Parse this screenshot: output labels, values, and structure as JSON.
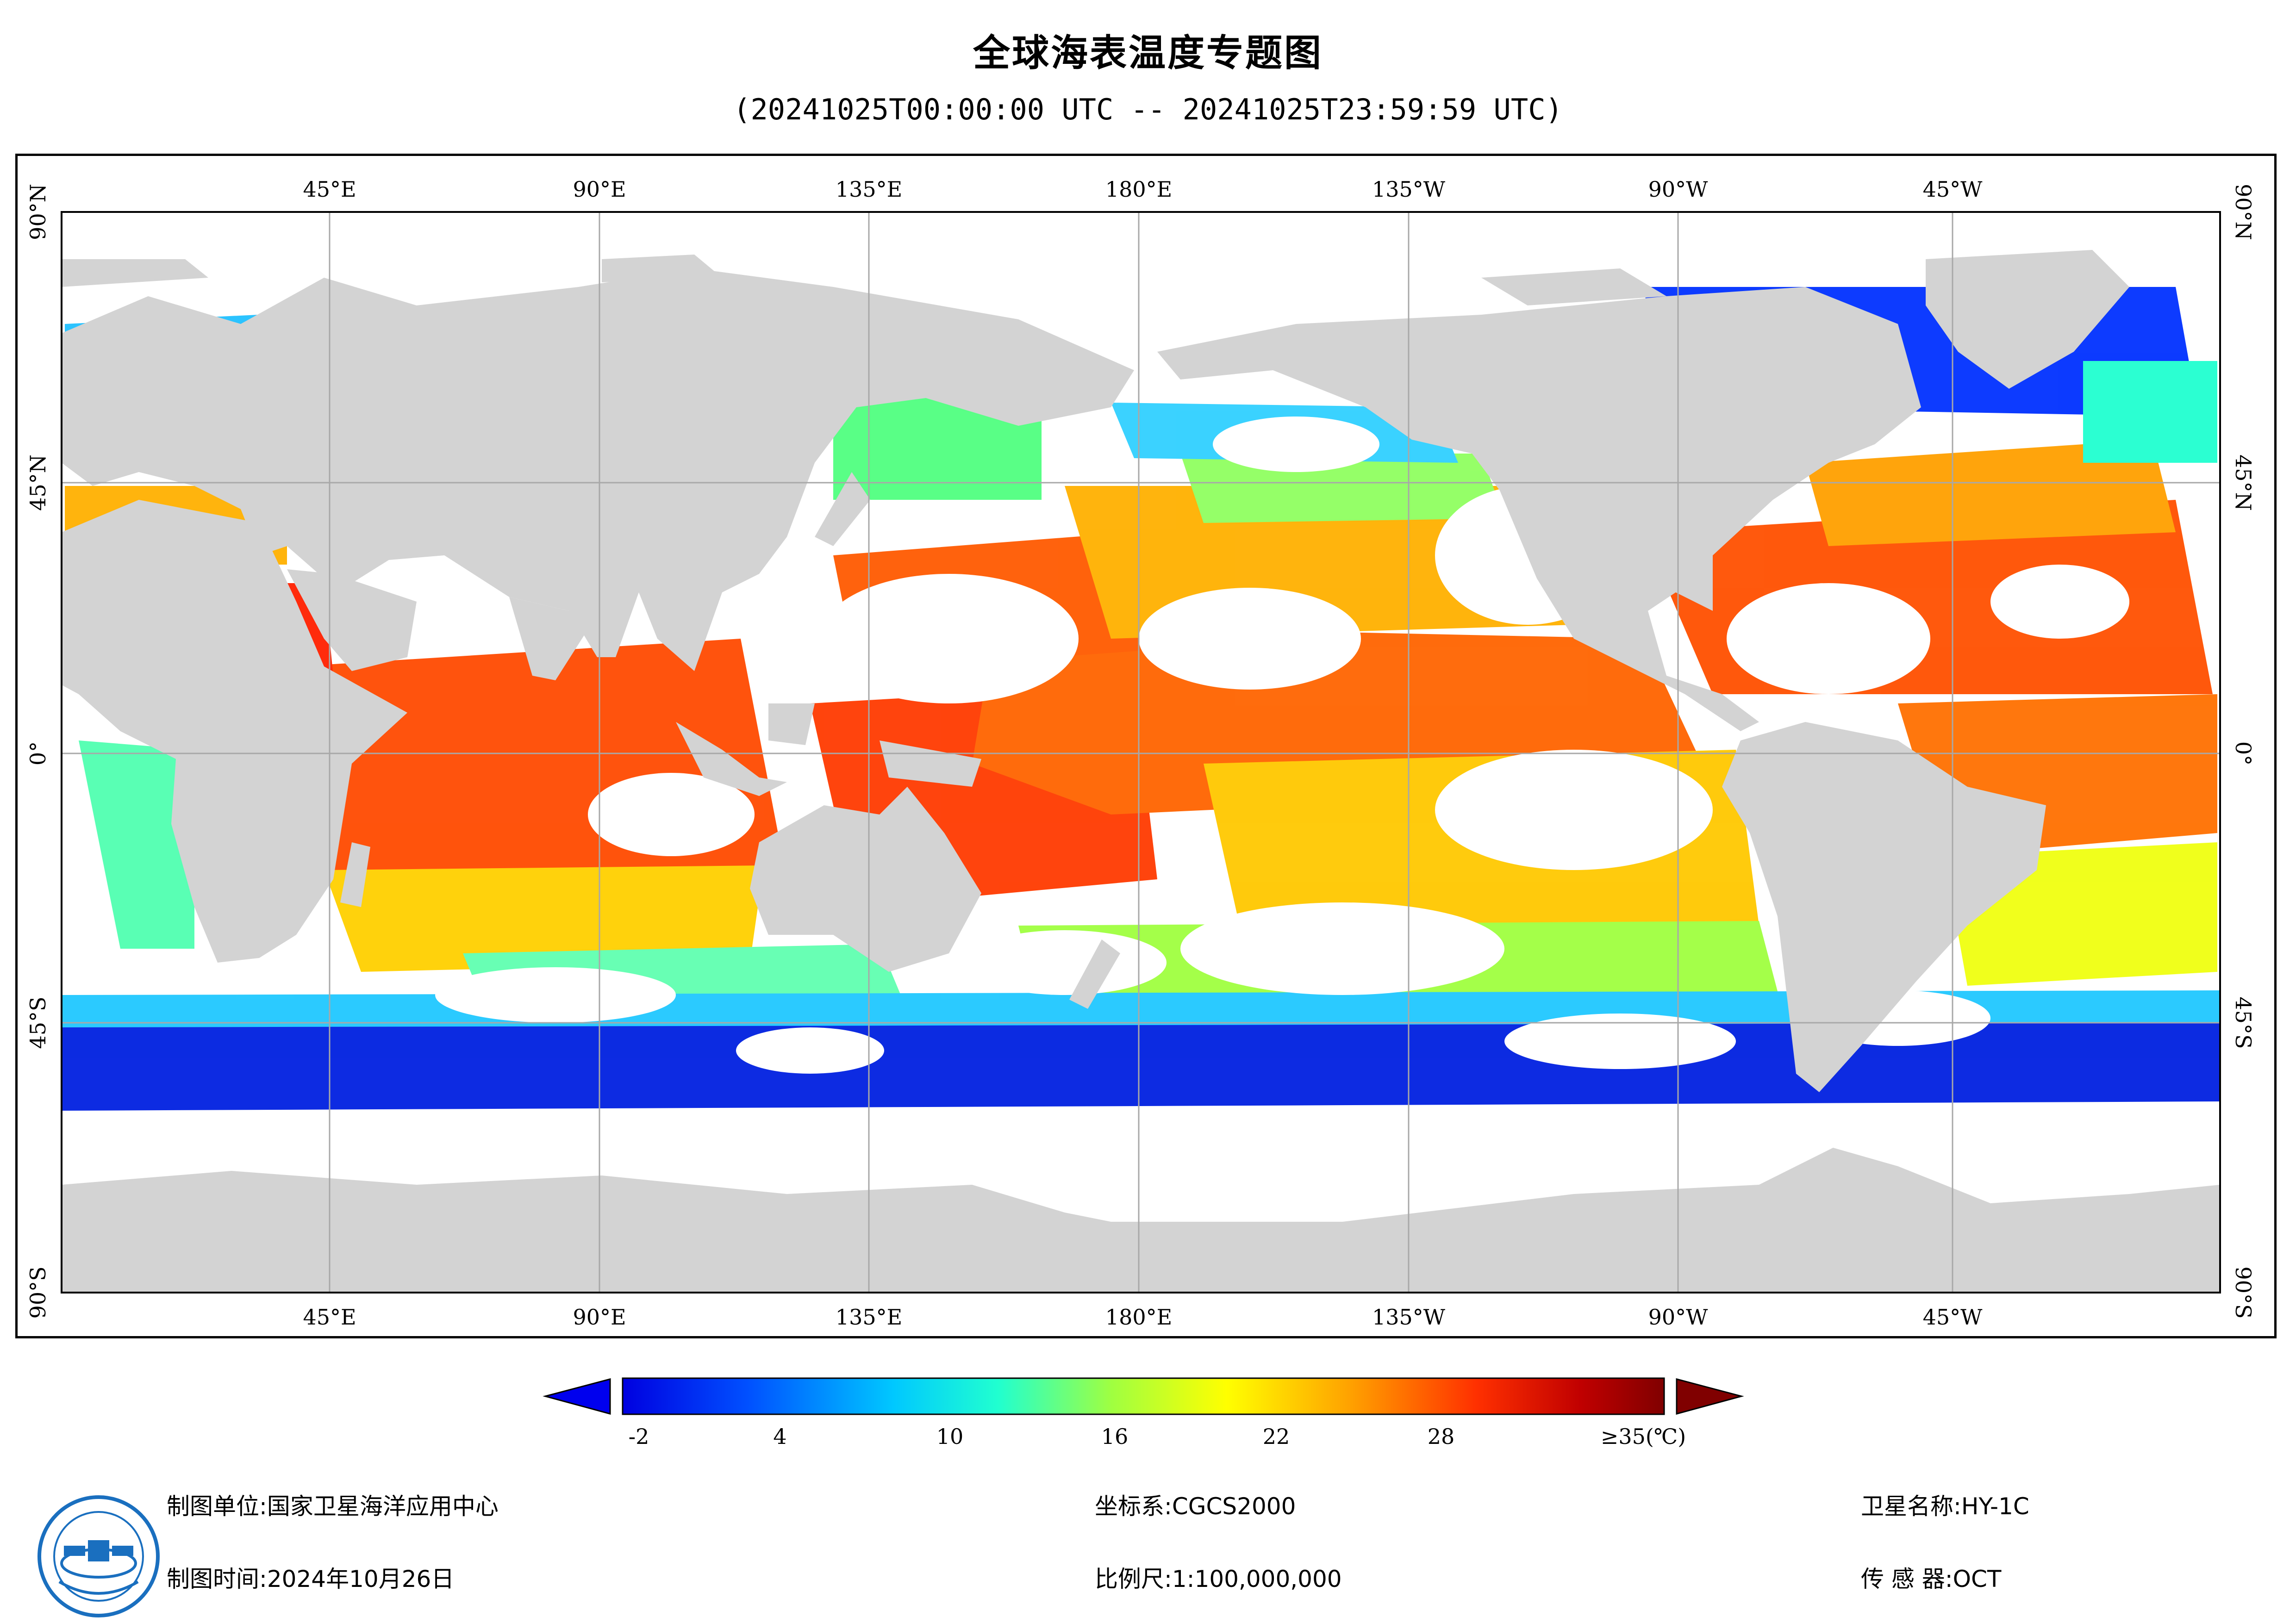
{
  "title": "全球海表温度专题图",
  "subtitle": "(20241025T00:00:00 UTC -- 20241025T23:59:59 UTC)",
  "map": {
    "lon_labels": [
      "45°E",
      "90°E",
      "135°E",
      "180°E",
      "135°W",
      "90°W",
      "45°W"
    ],
    "lat_labels": [
      "90°N",
      "45°N",
      "0°",
      "45°S",
      "90°S"
    ],
    "colors": {
      "land": "#d3d3d3",
      "no_data": "#ffffff",
      "grid": "#a8a8a8"
    }
  },
  "colorbar": {
    "labels": [
      "-2",
      "4",
      "10",
      "16",
      "22",
      "28",
      "≥35(℃)"
    ],
    "range": [
      -2,
      35
    ],
    "low_arrow_color": "#0000ee",
    "high_arrow_color": "#800000"
  },
  "footer": {
    "unit_label": "制图单位:国家卫星海洋应用中心",
    "time_label": "制图时间:2024年10月26日",
    "crs_label": "坐标系:CGCS2000",
    "scale_label": "比例尺:1:100,000,000",
    "satellite_label": "卫星名称:HY-1C",
    "sensor_label": "传 感 器:OCT"
  },
  "logo": {
    "icon": "satellite-agency-seal-icon",
    "color": "#1a6fbf"
  }
}
